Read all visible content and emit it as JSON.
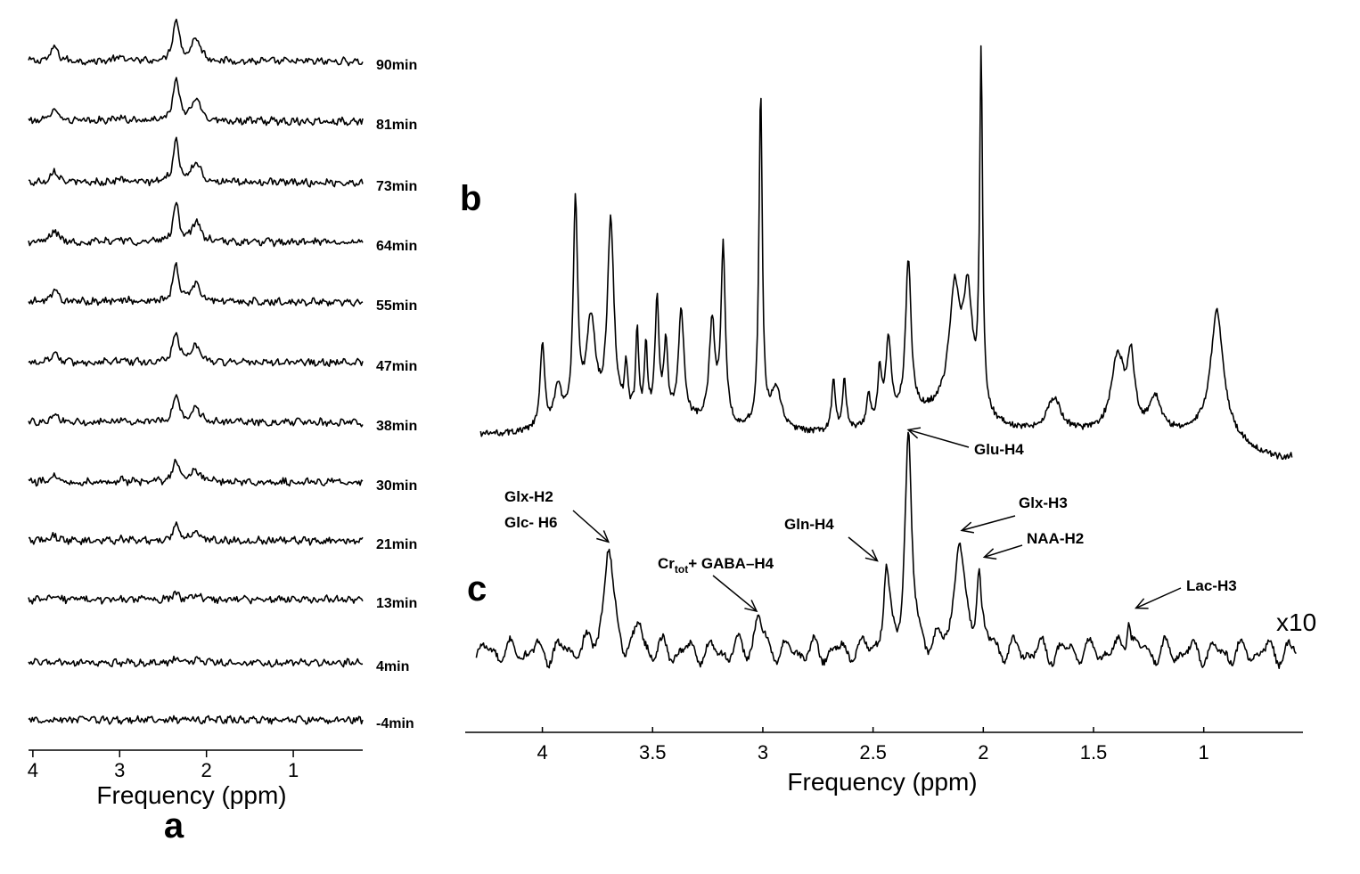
{
  "chart_data": [
    {
      "type": "line",
      "panel": "a",
      "xlabel": "Frequency (ppm)",
      "xticks": [
        "4",
        "3",
        "2",
        "1"
      ],
      "xtick_values": [
        4,
        3,
        2,
        1
      ],
      "xlim": [
        4.05,
        0.2
      ],
      "reversed_x": true,
      "series": [
        {
          "name": "90min",
          "amplitude": 1.0
        },
        {
          "name": "81min",
          "amplitude": 0.95
        },
        {
          "name": "73min",
          "amplitude": 0.9
        },
        {
          "name": "64min",
          "amplitude": 0.85
        },
        {
          "name": "55min",
          "amplitude": 0.8
        },
        {
          "name": "47min",
          "amplitude": 0.7
        },
        {
          "name": "38min",
          "amplitude": 0.6
        },
        {
          "name": "30min",
          "amplitude": 0.5
        },
        {
          "name": "21min",
          "amplitude": 0.38
        },
        {
          "name": "13min",
          "amplitude": 0.14
        },
        {
          "name": "4min",
          "amplitude": 0.08
        },
        {
          "name": "-4min",
          "amplitude": 0.0
        }
      ],
      "peaks_ppm": [
        3.75,
        2.35,
        2.1
      ]
    },
    {
      "type": "line",
      "panel": "b",
      "xlabel": "Frequency (ppm)",
      "xlim": [
        4.35,
        0.55
      ],
      "reversed_x": true,
      "peaks": [
        {
          "ppm": 4.0,
          "height": 0.25,
          "width": 0.012
        },
        {
          "ppm": 3.93,
          "height": 0.12,
          "width": 0.02
        },
        {
          "ppm": 3.85,
          "height": 0.65,
          "width": 0.012
        },
        {
          "ppm": 3.78,
          "height": 0.3,
          "width": 0.025
        },
        {
          "ppm": 3.69,
          "height": 0.58,
          "width": 0.018
        },
        {
          "ppm": 3.62,
          "height": 0.14,
          "width": 0.008
        },
        {
          "ppm": 3.57,
          "height": 0.25,
          "width": 0.008
        },
        {
          "ppm": 3.53,
          "height": 0.2,
          "width": 0.008
        },
        {
          "ppm": 3.48,
          "height": 0.35,
          "width": 0.01
        },
        {
          "ppm": 3.44,
          "height": 0.22,
          "width": 0.01
        },
        {
          "ppm": 3.37,
          "height": 0.32,
          "width": 0.015
        },
        {
          "ppm": 3.23,
          "height": 0.3,
          "width": 0.015
        },
        {
          "ppm": 3.18,
          "height": 0.52,
          "width": 0.012
        },
        {
          "ppm": 3.01,
          "height": 1.0,
          "width": 0.009
        },
        {
          "ppm": 2.94,
          "height": 0.12,
          "width": 0.03
        },
        {
          "ppm": 2.68,
          "height": 0.15,
          "width": 0.01
        },
        {
          "ppm": 2.63,
          "height": 0.15,
          "width": 0.01
        },
        {
          "ppm": 2.52,
          "height": 0.1,
          "width": 0.01
        },
        {
          "ppm": 2.47,
          "height": 0.16,
          "width": 0.01
        },
        {
          "ppm": 2.43,
          "height": 0.24,
          "width": 0.015
        },
        {
          "ppm": 2.34,
          "height": 0.46,
          "width": 0.015
        },
        {
          "ppm": 2.13,
          "height": 0.35,
          "width": 0.03
        },
        {
          "ppm": 2.07,
          "height": 0.33,
          "width": 0.025
        },
        {
          "ppm": 2.01,
          "height": 1.05,
          "width": 0.008
        },
        {
          "ppm": 1.68,
          "height": 0.1,
          "width": 0.04
        },
        {
          "ppm": 1.39,
          "height": 0.22,
          "width": 0.035
        },
        {
          "ppm": 1.33,
          "height": 0.2,
          "width": 0.02
        },
        {
          "ppm": 1.22,
          "height": 0.1,
          "width": 0.03
        },
        {
          "ppm": 0.94,
          "height": 0.37,
          "width": 0.035
        }
      ]
    },
    {
      "type": "line",
      "panel": "c",
      "xlabel": "Frequency (ppm)",
      "xticks": [
        "4",
        "3.5",
        "3",
        "2.5",
        "2",
        "1.5",
        "1"
      ],
      "xtick_values": [
        4,
        3.5,
        3,
        2.5,
        2,
        1.5,
        1
      ],
      "xlim": [
        4.35,
        0.55
      ],
      "reversed_x": true,
      "scale_factor": "x10",
      "peaks": [
        {
          "ppm": 3.7,
          "height": 0.48,
          "width": 0.025
        },
        {
          "ppm": 3.56,
          "height": 0.12,
          "width": 0.015
        },
        {
          "ppm": 3.02,
          "height": 0.16,
          "width": 0.02
        },
        {
          "ppm": 2.44,
          "height": 0.35,
          "width": 0.015
        },
        {
          "ppm": 2.34,
          "height": 1.0,
          "width": 0.018
        },
        {
          "ppm": 2.11,
          "height": 0.52,
          "width": 0.025
        },
        {
          "ppm": 2.02,
          "height": 0.37,
          "width": 0.014
        },
        {
          "ppm": 1.34,
          "height": 0.18,
          "width": 0.012
        }
      ],
      "annotations": [
        {
          "label": "Glu-H4",
          "ppm": 2.34
        },
        {
          "label": "Glx-H2",
          "line2": "Glc- H6",
          "ppm": 3.7
        },
        {
          "label": "Cr",
          "subscript": "tot",
          "suffix": "+ GABA–H4",
          "ppm": 3.02
        },
        {
          "label": "Gln-H4",
          "ppm": 2.44
        },
        {
          "label": "Glx-H3",
          "ppm": 2.11
        },
        {
          "label": "NAA-H2",
          "ppm": 2.02
        },
        {
          "label": "Lac-H3",
          "ppm": 1.34
        }
      ]
    }
  ],
  "panel_labels": {
    "a": "a",
    "b": "b",
    "c": "c"
  }
}
